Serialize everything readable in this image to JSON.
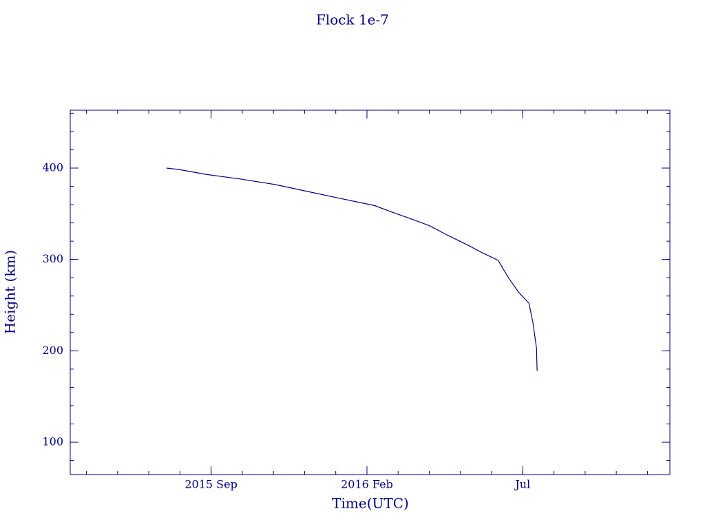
{
  "chart_data": {
    "type": "line",
    "title": "Flock 1e-7",
    "x_label": "Time(UTC)",
    "y_label": "Height (km)",
    "x": [
      -1.43,
      -1.04,
      -0.15,
      0.95,
      2.05,
      3.15,
      4.25,
      5.24,
      5.79,
      6.45,
      7.0,
      7.56,
      8.22,
      8.66,
      9.21,
      9.54,
      9.87,
      10.2,
      10.33,
      10.44,
      10.46
    ],
    "series": [
      {
        "color": "#000080",
        "values": [
          400,
          398.5,
          393,
          388,
          382,
          374,
          366,
          359,
          352,
          344,
          337,
          327,
          316,
          308,
          299,
          280,
          264,
          252,
          230,
          203,
          178
        ]
      }
    ],
    "xlim": [
      -4.52,
      14.72
    ],
    "xticks": [
      {
        "value": 0,
        "label": "2015 Sep"
      },
      {
        "value": 5,
        "label": "2016 Feb"
      },
      {
        "value": 10,
        "label": "Jul"
      }
    ],
    "ylim": [
      64.6,
      463.3
    ],
    "yticks": [
      100,
      200,
      300,
      400
    ]
  }
}
